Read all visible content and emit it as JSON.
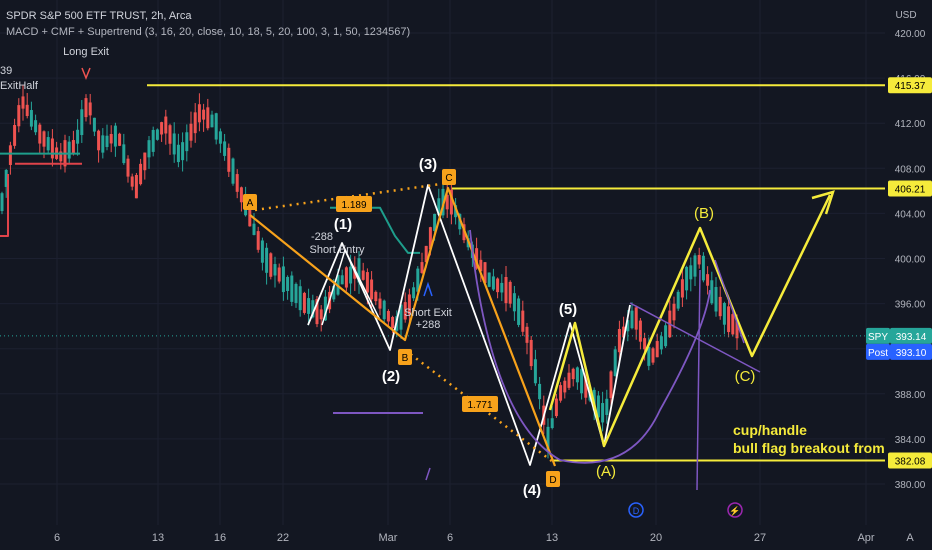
{
  "header": {
    "symbol_line": "SPDR S&P 500 ETF TRUST, 2h, Arca",
    "indicator_line": "MACD + CMF + Supertrend (3, 16, 20, close, 10, 18, 5, 20, 100, 3, 1, 50, 1234567)",
    "currency": "USD"
  },
  "price_axis": {
    "ticks": [
      "420.00",
      "416.00",
      "412.00",
      "408.00",
      "404.00",
      "400.00",
      "396.00",
      "392.00",
      "388.00",
      "384.00",
      "380.00"
    ],
    "level_tags": [
      "415.37",
      "406.21",
      "382.08"
    ],
    "spy_label": "SPY",
    "spy_value": "393.14",
    "post_label": "Post",
    "post_value": "393.10"
  },
  "time_axis": {
    "ticks": [
      "6",
      "13",
      "16",
      "22",
      "Mar",
      "6",
      "13",
      "20",
      "27",
      "Apr"
    ],
    "auto_label": "A"
  },
  "chart_data": {
    "type": "candlestick",
    "symbol": "SPY",
    "interval": "2h",
    "y_unit": "USD",
    "ylim": [
      378.5,
      422.5
    ],
    "last_price": 393.14,
    "post_price": 393.1,
    "horizontal_levels": [
      415.37,
      406.21,
      382.08
    ],
    "candles_approx": [
      {
        "t": "Feb 6",
        "o": 411.5,
        "h": 413.0,
        "l": 409.0,
        "c": 409.8
      },
      {
        "t": "Feb 9",
        "o": 413.8,
        "h": 415.5,
        "l": 410.5,
        "c": 411.5
      },
      {
        "t": "Feb 13",
        "o": 408.0,
        "h": 412.5,
        "l": 405.5,
        "c": 411.0
      },
      {
        "t": "Feb 16",
        "o": 412.5,
        "h": 413.8,
        "l": 408.5,
        "c": 409.0
      },
      {
        "t": "Feb 17",
        "o": 410.0,
        "h": 411.0,
        "l": 407.5,
        "c": 408.5
      },
      {
        "t": "Feb 21",
        "o": 402.5,
        "h": 403.5,
        "l": 398.5,
        "c": 399.0
      },
      {
        "t": "Feb 24",
        "o": 397.5,
        "h": 400.0,
        "l": 395.0,
        "c": 396.5
      },
      {
        "t": "Mar 2",
        "o": 394.5,
        "h": 398.0,
        "l": 393.5,
        "c": 397.5
      },
      {
        "t": "Mar 6",
        "o": 404.5,
        "h": 406.5,
        "l": 403.0,
        "c": 405.5
      },
      {
        "t": "Mar 9",
        "o": 400.0,
        "h": 401.0,
        "l": 393.5,
        "c": 394.0
      },
      {
        "t": "Mar 13",
        "o": 386.0,
        "h": 388.5,
        "l": 381.5,
        "c": 385.5
      },
      {
        "t": "Mar 16",
        "o": 392.0,
        "h": 396.0,
        "l": 389.5,
        "c": 394.5
      },
      {
        "t": "Mar 20",
        "o": 390.5,
        "h": 394.5,
        "l": 389.0,
        "c": 393.5
      },
      {
        "t": "Mar 22",
        "o": 399.5,
        "h": 400.5,
        "l": 395.0,
        "c": 396.0
      },
      {
        "t": "Mar 24",
        "o": 396.0,
        "h": 397.0,
        "l": 392.5,
        "c": 393.14
      }
    ],
    "annotations": {
      "wave_labels": [
        "(1)",
        "(2)",
        "(3)",
        "(4)",
        "(5)",
        "(A)",
        "(B)",
        "(C)"
      ],
      "point_labels": [
        "A",
        "B",
        "C",
        "D"
      ],
      "fib_labels": [
        "1.189",
        "1.771"
      ],
      "strategy_labels": [
        "Long Exit",
        "Short Entry",
        "-288",
        "Short Exit",
        "+288",
        "ExitHalf",
        "39"
      ],
      "note_line1": "cup/handle",
      "note_line2": "bull flag breakout from wave C"
    }
  },
  "colors": {
    "background": "#131722",
    "up": "#26a69a",
    "down": "#ef5350",
    "level_yellow": "#f5eb3b",
    "orange": "#f7a21b",
    "purple": "#7e57c2",
    "white": "#ffffff",
    "supertrend_teal": "#1e9e8c",
    "supertrend_red": "#e0434a",
    "spy_tag": "#26a69a",
    "post_tag": "#2962ff",
    "event_icon_blue": "#2962ff",
    "event_icon_purple": "#9c27b0"
  }
}
